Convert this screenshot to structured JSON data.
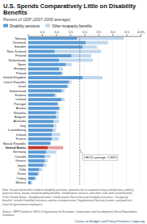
{
  "chart_data": {
    "type": "bar",
    "orientation": "horizontal",
    "stacked": true,
    "title": "U.S. Spends Comparatively Little on Disability Benefits",
    "subtitle": "Percent of GDP (2007-2009 average)",
    "categories": [
      "Norway",
      "Denmark",
      "Sweden",
      "New Zealand",
      "Finland",
      "Netherlands",
      "Spain",
      "Hungary",
      "Poland",
      "United Kingdom",
      "Czech Republic",
      "Israel",
      "Switzerland",
      "Estonia",
      "Iceland",
      "Portugal",
      "Austria",
      "Slovenia",
      "Belgium",
      "Australia",
      "Italy",
      "Luxembourg",
      "Ireland",
      "France",
      "Slovak Republic",
      "United States",
      "Germany",
      "Canada",
      "Greece",
      "Japan",
      "Chile",
      "Korea",
      "Turkey",
      "Mexico"
    ],
    "series": [
      {
        "name": "Disability pensions",
        "color": "#5b9bd5",
        "colors": [
          "#5b9bd5",
          "#5b9bd5",
          "#5b9bd5",
          "#5b9bd5",
          "#5b9bd5",
          "#5b9bd5",
          "#5b9bd5",
          "#5b9bd5",
          "#5b9bd5",
          "#5b9bd5",
          "#5b9bd5",
          "#5b9bd5",
          "#5b9bd5",
          "#5b9bd5",
          "#5b9bd5",
          "#5b9bd5",
          "#5b9bd5",
          "#5b9bd5",
          "#5b9bd5",
          "#5b9bd5",
          "#5b9bd5",
          "#5b9bd5",
          "#5b9bd5",
          "#5b9bd5",
          "#5b9bd5",
          "#c0392b",
          "#5b9bd5",
          "#5b9bd5",
          "#5b9bd5",
          "#5b9bd5",
          "#5b9bd5",
          "#5b9bd5",
          "#5b9bd5",
          "#5b9bd5"
        ],
        "values": [
          1.75,
          2.05,
          1.95,
          0.95,
          1.55,
          1.1,
          1.35,
          1.1,
          1.2,
          1.95,
          1.45,
          1.4,
          1.2,
          0.95,
          1.2,
          1.05,
          1.1,
          1.0,
          1.0,
          0.9,
          0.9,
          0.88,
          0.85,
          0.85,
          0.8,
          0.7,
          0.65,
          0.6,
          0.6,
          0.55,
          0.4,
          0.35,
          0.25,
          0.1
        ]
      },
      {
        "name": "Other incapacity benefits",
        "color": "#bdd7ee",
        "colors": [
          "#bdd7ee",
          "#bdd7ee",
          "#bdd7ee",
          "#bdd7ee",
          "#bdd7ee",
          "#bdd7ee",
          "#bdd7ee",
          "#bdd7ee",
          "#bdd7ee",
          "#bdd7ee",
          "#bdd7ee",
          "#bdd7ee",
          "#bdd7ee",
          "#bdd7ee",
          "#bdd7ee",
          "#bdd7ee",
          "#bdd7ee",
          "#bdd7ee",
          "#bdd7ee",
          "#bdd7ee",
          "#bdd7ee",
          "#bdd7ee",
          "#bdd7ee",
          "#bdd7ee",
          "#bdd7ee",
          "#e8a0a0",
          "#bdd7ee",
          "#bdd7ee",
          "#bdd7ee",
          "#bdd7ee",
          "#bdd7ee",
          "#bdd7ee",
          "#bdd7ee",
          "#bdd7ee"
        ],
        "values": [
          1.65,
          0.8,
          0.5,
          1.65,
          0.7,
          1.2,
          0.2,
          0.15,
          0.05,
          0.7,
          0.1,
          0.05,
          0.1,
          0.05,
          0.1,
          0.05,
          0.05,
          0.1,
          0.1,
          0.2,
          0.1,
          0.1,
          0.3,
          0.25,
          0.0,
          0.55,
          0.35,
          0.2,
          0.1,
          0.1,
          0.1,
          0.05,
          0.05,
          0.05
        ]
      }
    ],
    "xlim": [
      0,
      4.0
    ],
    "xticks": [
      0.5,
      {
        "value": 1.0,
        "label": "1.0"
      },
      1.5,
      {
        "value": 2.0,
        "label": "2.0"
      },
      2.5,
      {
        "value": 3.0,
        "label": "3.0"
      },
      3.5,
      {
        "value": 4.0,
        "label": "4.0%"
      }
    ],
    "grid": true,
    "legend": "top",
    "annotations": [
      {
        "text": "OECD average: 1.84%",
        "value": 1.84
      }
    ],
    "note": "Note: Incapacity benefits comprise disability pensions, pensions for occupational injury and disease, publicly\npaid sick leave, means-tested disability benefits, rehabilitation services, and other cash and in-kind benefits.\nIn the United States, \"disability pensions\" chiefly means Social Security Disability Insurance. \"Incapacity\nbenefits\" include Disability Insurance, workers compensation, Supplemental Security Income, and paid sick\nleave for government employees.\n\nSource: CBPP based on OECD (Organisation for Economic Cooperation and Development) Social Expenditure\nDatabase.",
    "footer": "Center on Budget and Policy Priorities | cbpp.org"
  }
}
